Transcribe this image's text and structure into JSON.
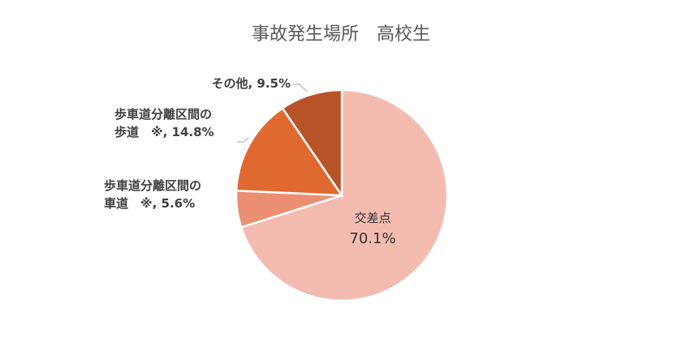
{
  "chart_data": {
    "type": "pie",
    "title": "事故発生場所　高校生",
    "categories": [
      "交差点",
      "歩車道分離区間の\n車道　※",
      "歩車道分離区間の\n歩道　※",
      "その他"
    ],
    "values": [
      70.1,
      5.6,
      14.8,
      9.5
    ],
    "value_labels": [
      "70.1%",
      ", 5.6%",
      ", 14.8%",
      ", 9.5%"
    ],
    "colors": [
      "#f4bcb0",
      "#eb8f72",
      "#e0692f",
      "#b85327"
    ]
  }
}
